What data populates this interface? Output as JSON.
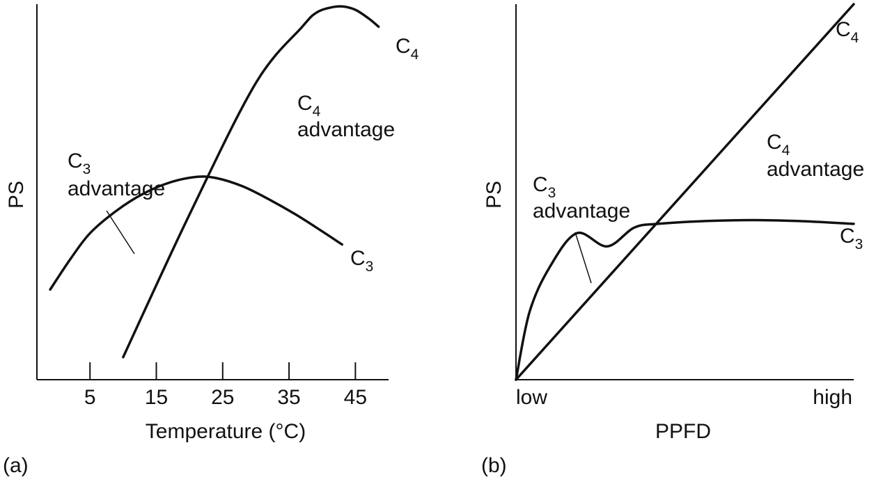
{
  "chart_data": [
    {
      "type": "line",
      "panel_label": "(a)",
      "xlabel": "Temperature (°C)",
      "ylabel": "PS",
      "x_ticks": [
        "5",
        "15",
        "25",
        "35",
        "45"
      ],
      "x_tick_values": [
        5,
        15,
        25,
        35,
        45
      ],
      "xlim": [
        -3,
        50
      ],
      "ylim": [
        0,
        100
      ],
      "grid": false,
      "series": [
        {
          "name": "C3",
          "name_main": "C",
          "name_sub": "3",
          "x": [
            -1,
            2,
            5,
            9,
            13,
            17,
            21,
            24,
            28,
            32,
            36,
            40,
            43
          ],
          "y": [
            24,
            32,
            39,
            45,
            49.5,
            52.5,
            54,
            53.7,
            51.5,
            48,
            44,
            39.5,
            36
          ]
        },
        {
          "name": "C4",
          "name_main": "C",
          "name_sub": "4",
          "x": [
            10,
            20,
            30,
            37,
            39,
            41,
            43,
            45,
            47,
            48.5
          ],
          "y": [
            6,
            44,
            79,
            94,
            97.6,
            99,
            99.4,
            98.5,
            96.2,
            94
          ]
        }
      ],
      "annotations": [
        {
          "main": "C",
          "sub": "4",
          "second_line": "advantage"
        },
        {
          "main": "C",
          "sub": "3",
          "second_line": "advantage"
        }
      ]
    },
    {
      "type": "line",
      "panel_label": "(b)",
      "xlabel": "PPFD",
      "ylabel": "PS",
      "x_ticks": [
        "low",
        "high"
      ],
      "xlim": [
        0,
        100
      ],
      "ylim": [
        0,
        100
      ],
      "grid": false,
      "series": [
        {
          "name": "C3",
          "name_main": "C",
          "name_sub": "3",
          "x": [
            0,
            4,
            10,
            18,
            27,
            35,
            42,
            55,
            70,
            85,
            100
          ],
          "y": [
            0,
            18,
            30,
            39,
            35.5,
            40.5,
            41.5,
            42.2,
            42.5,
            42.2,
            41.5
          ]
        },
        {
          "name": "C4",
          "name_main": "C",
          "name_sub": "4",
          "x": [
            0,
            100
          ],
          "y": [
            0,
            100
          ]
        }
      ],
      "annotations": [
        {
          "main": "C",
          "sub": "4",
          "second_line": "advantage"
        },
        {
          "main": "C",
          "sub": "3",
          "second_line": "advantage"
        }
      ]
    }
  ]
}
